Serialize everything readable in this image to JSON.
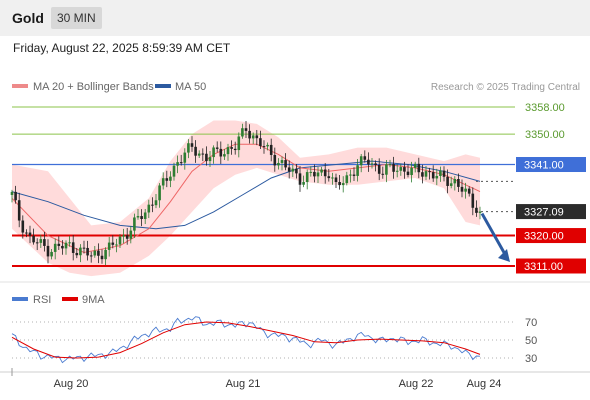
{
  "header": {
    "title": "Gold",
    "timeframe": "30 MIN"
  },
  "datetime": "Friday, August 22, 2025 8:59:39 AM CET",
  "colors": {
    "ma20": "#ee6666",
    "bands": "#ffd5d5",
    "ma50": "#2c5aa0",
    "candle_up": "#2e7d32",
    "candle_down": "#222222",
    "support": "#e00000",
    "resistance": "#8bc34a",
    "pivot": "#3f6fd8",
    "rsi": "#4a7bd0",
    "rsi_ma": "#e00000",
    "arrow": "#2c5aa0"
  },
  "chart_data": [
    {
      "type": "candlestick",
      "legend": [
        {
          "name": "MA 20 + Bollinger Bands",
          "color": "#ee6666"
        },
        {
          "name": "MA 50",
          "color": "#2c5aa0"
        }
      ],
      "watermark": "Research © 2025 Trading Central",
      "y_range": [
        3305,
        3362
      ],
      "price_labels": [
        {
          "value": 3358.0,
          "text": "3358.00",
          "kind": "resistance"
        },
        {
          "value": 3350.0,
          "text": "3350.00",
          "kind": "resistance"
        },
        {
          "value": 3341.0,
          "text": "3341.00",
          "kind": "pivot"
        },
        {
          "value": 3327.09,
          "text": "3327.09",
          "kind": "last"
        },
        {
          "value": 3320.0,
          "text": "3320.00",
          "kind": "support"
        },
        {
          "value": 3311.0,
          "text": "3311.00",
          "kind": "support"
        }
      ],
      "close_path": [
        [
          0,
          3332
        ],
        [
          2,
          3325
        ],
        [
          5,
          3319
        ],
        [
          10,
          3316
        ],
        [
          16,
          3317
        ],
        [
          22,
          3314
        ],
        [
          27,
          3316
        ],
        [
          32,
          3321
        ],
        [
          37,
          3327
        ],
        [
          42,
          3335
        ],
        [
          46,
          3342
        ],
        [
          50,
          3346
        ],
        [
          54,
          3343
        ],
        [
          58,
          3345
        ],
        [
          62,
          3346
        ],
        [
          65,
          3352
        ],
        [
          68,
          3348
        ],
        [
          72,
          3344
        ],
        [
          76,
          3340
        ],
        [
          80,
          3337
        ],
        [
          84,
          3338
        ],
        [
          88,
          3339
        ],
        [
          90,
          3334
        ],
        [
          93,
          3337
        ],
        [
          96,
          3341
        ],
        [
          99,
          3342
        ],
        [
          103,
          3339
        ],
        [
          107,
          3340
        ],
        [
          111,
          3339
        ],
        [
          115,
          3339
        ],
        [
          119,
          3337
        ],
        [
          123,
          3336
        ],
        [
          127,
          3331
        ],
        [
          130,
          3327.09
        ]
      ],
      "ma50_path": [
        [
          0,
          3333
        ],
        [
          10,
          3330
        ],
        [
          20,
          3326
        ],
        [
          30,
          3323
        ],
        [
          40,
          3322
        ],
        [
          48,
          3323
        ],
        [
          56,
          3327
        ],
        [
          64,
          3332
        ],
        [
          72,
          3337
        ],
        [
          80,
          3340
        ],
        [
          90,
          3341
        ],
        [
          100,
          3342
        ],
        [
          110,
          3341
        ],
        [
          120,
          3339
        ],
        [
          130,
          3336
        ]
      ],
      "ma20_path": [
        [
          0,
          3331
        ],
        [
          10,
          3320
        ],
        [
          20,
          3315
        ],
        [
          30,
          3317
        ],
        [
          38,
          3322
        ],
        [
          44,
          3330
        ],
        [
          50,
          3339
        ],
        [
          56,
          3344
        ],
        [
          62,
          3347
        ],
        [
          68,
          3347
        ],
        [
          74,
          3344
        ],
        [
          80,
          3340
        ],
        [
          88,
          3339
        ],
        [
          96,
          3340
        ],
        [
          104,
          3341
        ],
        [
          112,
          3340
        ],
        [
          120,
          3338
        ],
        [
          130,
          3333
        ]
      ],
      "band_upper": [
        [
          0,
          3341
        ],
        [
          10,
          3339
        ],
        [
          16,
          3331
        ],
        [
          22,
          3323
        ],
        [
          30,
          3324
        ],
        [
          38,
          3331
        ],
        [
          44,
          3342
        ],
        [
          50,
          3350
        ],
        [
          56,
          3354
        ],
        [
          62,
          3354
        ],
        [
          68,
          3353
        ],
        [
          74,
          3349
        ],
        [
          80,
          3343
        ],
        [
          88,
          3344
        ],
        [
          96,
          3346
        ],
        [
          104,
          3346
        ],
        [
          112,
          3344
        ],
        [
          120,
          3342
        ],
        [
          126,
          3344
        ],
        [
          130,
          3343
        ]
      ],
      "band_lower": [
        [
          0,
          3322
        ],
        [
          10,
          3312
        ],
        [
          16,
          3309
        ],
        [
          22,
          3308
        ],
        [
          30,
          3309
        ],
        [
          38,
          3314
        ],
        [
          44,
          3320
        ],
        [
          50,
          3327
        ],
        [
          56,
          3334
        ],
        [
          62,
          3338
        ],
        [
          68,
          3340
        ],
        [
          74,
          3338
        ],
        [
          80,
          3336
        ],
        [
          88,
          3335
        ],
        [
          96,
          3335
        ],
        [
          104,
          3336
        ],
        [
          112,
          3337
        ],
        [
          120,
          3334
        ],
        [
          126,
          3324
        ],
        [
          130,
          3323
        ]
      ],
      "forecast_arrow": {
        "from": 3327.09,
        "to": 3311.0
      }
    },
    {
      "type": "line",
      "legend": [
        {
          "name": "RSI",
          "color": "#4a7bd0"
        },
        {
          "name": "9MA",
          "color": "#e00000"
        }
      ],
      "y_range": [
        20,
        80
      ],
      "y_ticks": [
        "70",
        "50",
        "30"
      ],
      "x_ticks": [
        "Aug 20",
        "Aug 21",
        "Aug 22",
        "Aug 24"
      ],
      "rsi_path": [
        [
          0,
          55
        ],
        [
          4,
          40
        ],
        [
          8,
          33
        ],
        [
          12,
          30
        ],
        [
          16,
          29
        ],
        [
          20,
          31
        ],
        [
          24,
          33
        ],
        [
          28,
          36
        ],
        [
          32,
          45
        ],
        [
          36,
          55
        ],
        [
          40,
          60
        ],
        [
          44,
          63
        ],
        [
          46,
          70
        ],
        [
          50,
          75
        ],
        [
          54,
          68
        ],
        [
          58,
          69
        ],
        [
          62,
          66
        ],
        [
          66,
          70
        ],
        [
          70,
          58
        ],
        [
          74,
          55
        ],
        [
          78,
          52
        ],
        [
          82,
          45
        ],
        [
          86,
          50
        ],
        [
          90,
          44
        ],
        [
          94,
          52
        ],
        [
          98,
          56
        ],
        [
          102,
          49
        ],
        [
          106,
          52
        ],
        [
          110,
          48
        ],
        [
          114,
          50
        ],
        [
          118,
          46
        ],
        [
          122,
          44
        ],
        [
          126,
          35
        ],
        [
          130,
          31
        ]
      ],
      "ma9_path": [
        [
          0,
          53
        ],
        [
          6,
          40
        ],
        [
          12,
          31
        ],
        [
          18,
          30
        ],
        [
          24,
          31
        ],
        [
          30,
          36
        ],
        [
          36,
          46
        ],
        [
          42,
          58
        ],
        [
          48,
          67
        ],
        [
          54,
          70
        ],
        [
          60,
          69
        ],
        [
          66,
          65
        ],
        [
          72,
          60
        ],
        [
          78,
          55
        ],
        [
          84,
          48
        ],
        [
          90,
          47
        ],
        [
          96,
          50
        ],
        [
          102,
          51
        ],
        [
          108,
          50
        ],
        [
          114,
          49
        ],
        [
          120,
          47
        ],
        [
          126,
          40
        ],
        [
          130,
          34
        ]
      ]
    }
  ]
}
